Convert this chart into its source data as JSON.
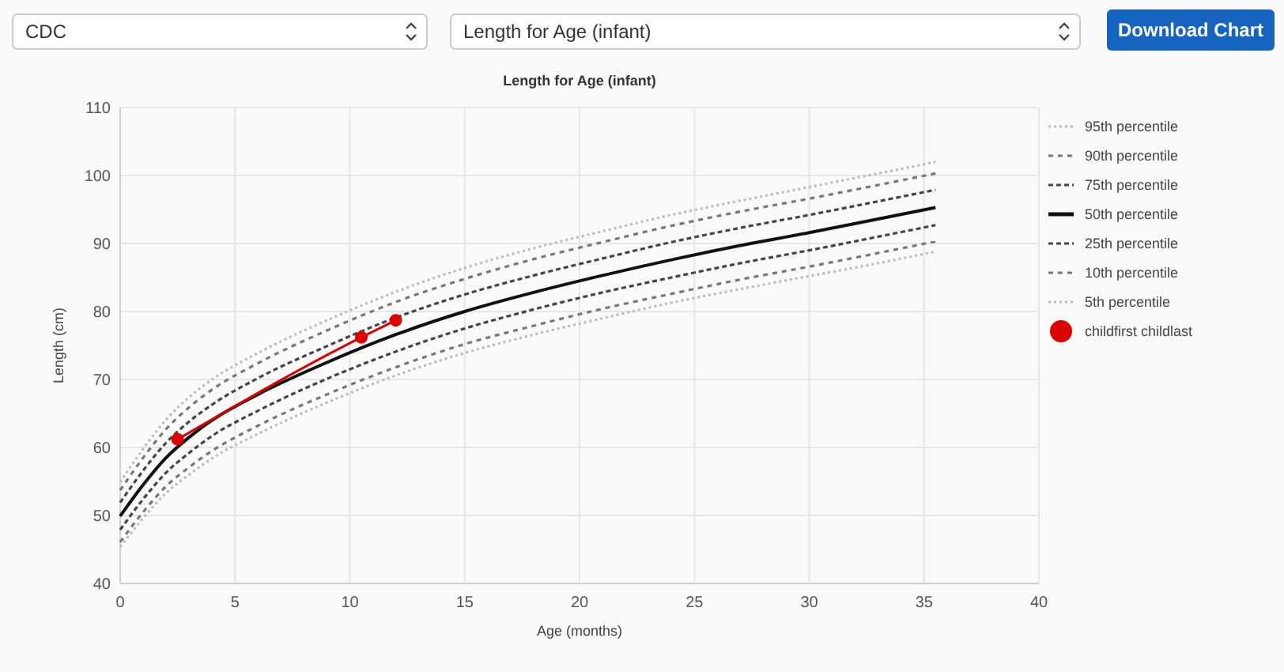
{
  "chart_data": {
    "type": "line",
    "title": "Length for Age (infant)",
    "xlabel": "Age (months)",
    "ylabel": "Length (cm)",
    "annotations": [
      "CDC",
      "Length for Age (infant)",
      "Download Chart"
    ],
    "xlim": [
      0,
      40
    ],
    "xticks": [
      0,
      5,
      10,
      15,
      20,
      25,
      30,
      35,
      40
    ],
    "ylim": [
      40,
      110
    ],
    "yticks": [
      40,
      50,
      60,
      70,
      80,
      90,
      100,
      110
    ],
    "grid": true,
    "legend": "right",
    "marker": "none",
    "x": [
      0,
      1,
      2,
      3,
      4,
      6,
      9,
      12,
      15,
      18,
      21,
      24,
      27,
      30,
      33,
      35.5
    ],
    "series": [
      {
        "name": "95th percentile",
        "color": "#bbbbbb",
        "line_style": "dotted",
        "values": [
          54.9,
          59.8,
          64.1,
          67.4,
          70.0,
          73.9,
          78.7,
          82.9,
          86.4,
          89.3,
          91.8,
          94.2,
          96.3,
          98.3,
          100.3,
          102.0
        ]
      },
      {
        "name": "90th percentile",
        "color": "#777777",
        "line_style": "dashed",
        "values": [
          53.7,
          58.5,
          62.7,
          65.9,
          68.5,
          72.4,
          77.2,
          81.4,
          84.8,
          87.7,
          90.2,
          92.6,
          94.7,
          96.6,
          98.6,
          100.3
        ]
      },
      {
        "name": "75th percentile",
        "color": "#444444",
        "line_style": "dashed",
        "values": [
          51.9,
          56.6,
          60.7,
          63.8,
          66.3,
          70.2,
          74.9,
          79.1,
          82.5,
          85.3,
          87.8,
          90.2,
          92.3,
          94.2,
          96.2,
          97.9
        ]
      },
      {
        "name": "50th percentile",
        "color": "#111111",
        "line_style": "solid",
        "values": [
          49.9,
          54.5,
          58.5,
          61.5,
          64.0,
          67.8,
          72.5,
          76.6,
          80.0,
          82.8,
          85.3,
          87.6,
          89.7,
          91.6,
          93.6,
          95.3
        ]
      },
      {
        "name": "25th percentile",
        "color": "#444444",
        "line_style": "dashed",
        "values": [
          47.9,
          52.4,
          56.3,
          59.2,
          61.7,
          65.4,
          70.1,
          74.1,
          77.5,
          80.3,
          82.8,
          85.0,
          87.1,
          89.0,
          91.0,
          92.7
        ]
      },
      {
        "name": "10th percentile",
        "color": "#777777",
        "line_style": "dashed",
        "values": [
          46.1,
          50.5,
          54.3,
          57.1,
          59.5,
          63.2,
          67.8,
          71.8,
          75.2,
          77.9,
          80.4,
          82.6,
          84.7,
          86.6,
          88.6,
          90.3
        ]
      },
      {
        "name": "5th percentile",
        "color": "#bbbbbb",
        "line_style": "dotted",
        "values": [
          45.4,
          49.6,
          53.3,
          56.0,
          58.4,
          62.0,
          66.6,
          70.6,
          73.9,
          76.6,
          79.0,
          81.3,
          83.3,
          85.2,
          87.1,
          88.8
        ]
      },
      {
        "name": "childfirst childlast",
        "color": "#dd0000",
        "line_style": "solid",
        "marker": "circle",
        "x": [
          2.5,
          10.5,
          12
        ],
        "values": [
          61.2,
          76.2,
          78.7
        ]
      }
    ]
  }
}
